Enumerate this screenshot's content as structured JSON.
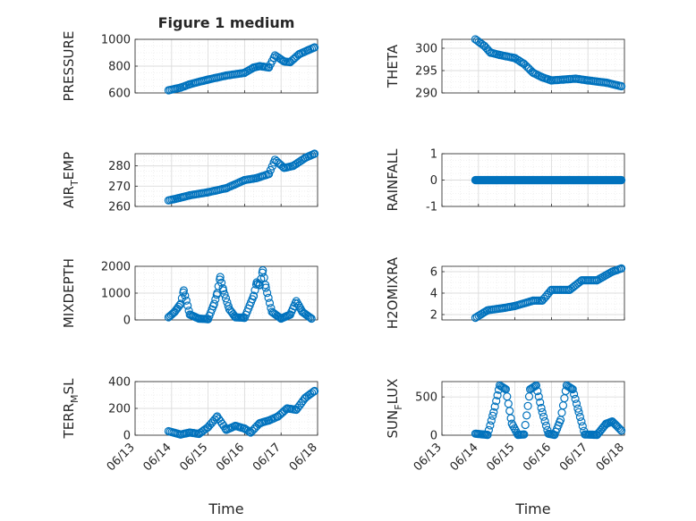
{
  "chart_data": [
    {
      "type": "scatter",
      "title": "Figure 1 medium",
      "ylabel": "PRESSURE",
      "xlabel": "",
      "xlim": [
        "06/13",
        "06/18"
      ],
      "ylim": [
        600,
        1000
      ],
      "yticks": [
        600,
        800,
        1000
      ],
      "x": [
        "06/13 22:00",
        "06/14 06:00",
        "06/14 12:00",
        "06/15 00:00",
        "06/15 12:00",
        "06/16 00:00",
        "06/16 06:00",
        "06/16 10:00",
        "06/16 16:00",
        "06/16 20:00",
        "06/17 02:00",
        "06/17 06:00",
        "06/17 12:00",
        "06/17 18:00",
        "06/17 22:00"
      ],
      "y": [
        620,
        640,
        665,
        700,
        730,
        750,
        790,
        800,
        790,
        880,
        835,
        830,
        890,
        920,
        940
      ]
    },
    {
      "type": "scatter",
      "title": "",
      "ylabel": "THETA",
      "xlabel": "",
      "xlim": [
        "06/13",
        "06/18"
      ],
      "ylim": [
        290,
        302
      ],
      "yticks": [
        290,
        295,
        300
      ],
      "x": [
        "06/13 22:00",
        "06/14 04:00",
        "06/14 08:00",
        "06/14 14:00",
        "06/15 00:00",
        "06/15 06:00",
        "06/15 12:00",
        "06/15 18:00",
        "06/16 00:00",
        "06/16 08:00",
        "06/16 16:00",
        "06/17 00:00",
        "06/17 12:00",
        "06/17 22:00"
      ],
      "y": [
        302,
        300.5,
        299,
        298.5,
        297.8,
        296.5,
        294.5,
        293.5,
        292.8,
        293,
        293.2,
        292.8,
        292.3,
        291.5
      ]
    },
    {
      "type": "scatter",
      "title": "",
      "ylabel": "AIR_TEMP",
      "ylabel_main": "AIR",
      "ylabel_sub": "T",
      "ylabel_tail": "EMP",
      "xlabel": "",
      "xlim": [
        "06/13",
        "06/18"
      ],
      "ylim": [
        260,
        286
      ],
      "yticks": [
        260,
        270,
        280
      ],
      "x": [
        "06/13 22:00",
        "06/14 04:00",
        "06/14 12:00",
        "06/15 00:00",
        "06/15 12:00",
        "06/16 00:00",
        "06/16 08:00",
        "06/16 16:00",
        "06/16 20:00",
        "06/17 02:00",
        "06/17 08:00",
        "06/17 16:00",
        "06/17 22:00"
      ],
      "y": [
        263,
        264,
        265.5,
        267,
        269,
        273,
        274,
        276,
        283,
        279,
        280,
        284,
        286
      ]
    },
    {
      "type": "scatter",
      "title": "",
      "ylabel": "RAINFALL",
      "xlabel": "",
      "xlim": [
        "06/13",
        "06/18"
      ],
      "ylim": [
        -1,
        1
      ],
      "yticks": [
        -1,
        0,
        1
      ],
      "x": [
        "06/13 22:00",
        "06/14 12:00",
        "06/15 00:00",
        "06/15 12:00",
        "06/16 00:00",
        "06/16 12:00",
        "06/17 00:00",
        "06/17 12:00",
        "06/17 22:00"
      ],
      "y": [
        0,
        0,
        0,
        0,
        0,
        0,
        0,
        0,
        0
      ]
    },
    {
      "type": "scatter",
      "title": "",
      "ylabel": "MIXDEPTH",
      "xlabel": "",
      "xlim": [
        "06/13",
        "06/18"
      ],
      "ylim": [
        0,
        2000
      ],
      "yticks": [
        0,
        1000,
        2000
      ],
      "x": [
        "06/13 22:00",
        "06/14 02:00",
        "06/14 06:00",
        "06/14 08:00",
        "06/14 12:00",
        "06/14 18:00",
        "06/15 00:00",
        "06/15 04:00",
        "06/15 06:00",
        "06/15 08:00",
        "06/15 10:00",
        "06/15 14:00",
        "06/15 18:00",
        "06/16 00:00",
        "06/16 06:00",
        "06/16 08:00",
        "06/16 10:00",
        "06/16 12:00",
        "06/16 14:00",
        "06/16 18:00",
        "06/17 00:00",
        "06/17 06:00",
        "06/17 10:00",
        "06/17 14:00",
        "06/17 20:00"
      ],
      "y": [
        100,
        300,
        600,
        1100,
        200,
        50,
        30,
        600,
        1000,
        1600,
        1100,
        400,
        100,
        80,
        900,
        1400,
        1300,
        1850,
        1200,
        300,
        50,
        200,
        700,
        300,
        50
      ]
    },
    {
      "type": "scatter",
      "title": "",
      "ylabel": "H2OMIXRA",
      "xlabel": "",
      "xlim": [
        "06/13",
        "06/18"
      ],
      "ylim": [
        1.5,
        6.5
      ],
      "yticks": [
        2,
        4,
        6
      ],
      "x": [
        "06/13 22:00",
        "06/14 06:00",
        "06/14 16:00",
        "06/15 00:00",
        "06/15 12:00",
        "06/15 18:00",
        "06/16 00:00",
        "06/16 12:00",
        "06/16 20:00",
        "06/17 06:00",
        "06/17 16:00",
        "06/17 22:00"
      ],
      "y": [
        1.7,
        2.4,
        2.6,
        2.8,
        3.3,
        3.3,
        4.3,
        4.3,
        5.2,
        5.2,
        6.0,
        6.3
      ]
    },
    {
      "type": "scatter",
      "title": "",
      "ylabel": "TERR_MSL",
      "ylabel_main": "TERR",
      "ylabel_sub": "M",
      "ylabel_tail": "SL",
      "xlabel": "Time",
      "xlim": [
        "06/13",
        "06/18"
      ],
      "ylim": [
        0,
        400
      ],
      "yticks": [
        0,
        200,
        400
      ],
      "xticks": [
        "06/13",
        "06/14",
        "06/15",
        "06/16",
        "06/17",
        "06/18"
      ],
      "x": [
        "06/13 22:00",
        "06/14 06:00",
        "06/14 12:00",
        "06/14 18:00",
        "06/15 00:00",
        "06/15 06:00",
        "06/15 12:00",
        "06/15 18:00",
        "06/16 00:00",
        "06/16 04:00",
        "06/16 10:00",
        "06/16 16:00",
        "06/16 22:00",
        "06/17 04:00",
        "06/17 10:00",
        "06/17 16:00",
        "06/17 22:00"
      ],
      "y": [
        30,
        5,
        20,
        10,
        60,
        140,
        40,
        70,
        50,
        20,
        90,
        110,
        140,
        200,
        190,
        280,
        330
      ]
    },
    {
      "type": "scatter",
      "title": "",
      "ylabel": "SUN_FLUX",
      "ylabel_main": "SUN",
      "ylabel_sub": "F",
      "ylabel_tail": "LUX",
      "xlabel": "Time",
      "xlim": [
        "06/13",
        "06/18"
      ],
      "ylim": [
        0,
        700
      ],
      "yticks": [
        0,
        500
      ],
      "xticks": [
        "06/13",
        "06/14",
        "06/15",
        "06/16",
        "06/17",
        "06/18"
      ],
      "x": [
        "06/13 22:00",
        "06/14 06:00",
        "06/14 10:00",
        "06/14 14:00",
        "06/14 18:00",
        "06/14 22:00",
        "06/15 02:00",
        "06/15 06:00",
        "06/15 10:00",
        "06/15 14:00",
        "06/15 18:00",
        "06/15 22:00",
        "06/16 02:00",
        "06/16 06:00",
        "06/16 10:00",
        "06/16 14:00",
        "06/16 18:00",
        "06/16 22:00",
        "06/17 06:00",
        "06/17 12:00",
        "06/17 16:00",
        "06/17 22:00"
      ],
      "y": [
        20,
        5,
        300,
        650,
        600,
        150,
        5,
        10,
        600,
        650,
        300,
        20,
        5,
        200,
        650,
        600,
        300,
        10,
        5,
        150,
        180,
        60
      ]
    }
  ]
}
